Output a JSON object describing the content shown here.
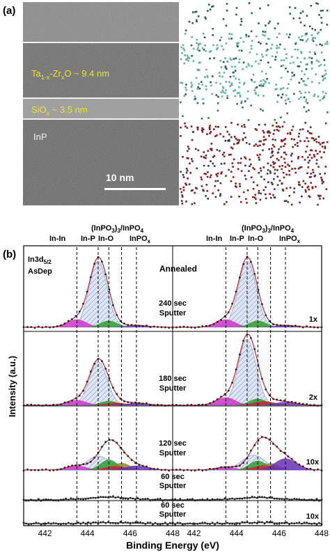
{
  "panel_a": {
    "label": "(a)",
    "tem": {
      "layer1_label": "Ta",
      "layer1_sub1": "1-x",
      "layer1_mid": "-Zr",
      "layer1_sub2": "x",
      "layer1_rest": "O ~ 9.4 nm",
      "layer2_label": "SiO",
      "layer2_sub": "x",
      "layer2_rest": " ~ 3.5 nm",
      "substrate_label": "InP",
      "scale_bar_label": "10  nm"
    },
    "colors": {
      "tem_background": "#7d7d7d",
      "oxide_layer": "#5aa58d",
      "inp_layer": "#8b1a1a",
      "annotation_yellow": "#e8e82a"
    }
  },
  "panel_b": {
    "label": "(b)",
    "core_level": "In3d",
    "core_level_sub": "5/2",
    "left_condition": "AsDep",
    "right_condition": "Annealed",
    "peak_labels_left": {
      "in_in": "In-In",
      "in_p": "In-P",
      "in_o": "In-O",
      "inpo3": "(InPO",
      "inpo3_sub": "3",
      "inpo3_tail": ")",
      "inpo3_sub2": "3",
      "inpo4": "/InPO",
      "inpo4_sub": "4",
      "inpox": "InPO",
      "inpox_sub": "x"
    },
    "stack_labels": [
      {
        "line1": "240 sec",
        "line2": "Sputter",
        "multiplier": "1x"
      },
      {
        "line1": "180 sec",
        "line2": "Sputter",
        "multiplier": "2x"
      },
      {
        "line1": "120 sec",
        "line2": "Sputter",
        "multiplier": "10x"
      },
      {
        "line1": "60 sec",
        "line2": "Sputter",
        "multiplier": ""
      },
      {
        "line1": "60 sec",
        "line2": "Sputter",
        "multiplier": "10x"
      }
    ],
    "ylabel": "Intensity (a.u.)",
    "xlabel": "Binding Energy (eV)",
    "x_ticks": [
      "442",
      "444",
      "446",
      "448",
      "442",
      "444",
      "446",
      "448"
    ],
    "colors": {
      "magenta": "#cc33cc",
      "green": "#2e9e2e",
      "red": "#cc2233",
      "purple": "#6a2fb8",
      "olive": "#8a8a2a",
      "main_peak": "#8fa8d8",
      "fit_line": "#c0202a",
      "data_points": "#222222"
    }
  },
  "chart_data": {
    "type": "line",
    "xlabel": "Binding Energy (eV)",
    "ylabel": "Intensity (a.u.)",
    "xlim": [
      441,
      448
    ],
    "x_ticks": [
      442,
      444,
      446,
      448
    ],
    "reference_lines_eV": [
      443.5,
      444.5,
      445.0,
      445.6,
      446.3
    ],
    "panels": [
      {
        "condition": "AsDep",
        "spectra": [
          {
            "name": "240 sec Sputter",
            "scale": "1x",
            "peak_center": 444.5,
            "peak_height": 1.0
          },
          {
            "name": "180 sec Sputter",
            "scale": "",
            "peak_center": 444.5,
            "peak_height": 0.62
          },
          {
            "name": "120 sec Sputter",
            "scale": "",
            "peak_center": 444.9,
            "peak_height": 0.52
          },
          {
            "name": "60 sec Sputter",
            "scale": "",
            "peak_center": 445.0,
            "peak_height": 0.06
          },
          {
            "name": "60 sec Sputter",
            "scale": "",
            "peak_center": 445.0,
            "peak_height": 0.02
          }
        ]
      },
      {
        "condition": "Annealed",
        "spectra": [
          {
            "name": "240 sec Sputter",
            "scale": "1x",
            "peak_center": 444.5,
            "peak_height": 1.0
          },
          {
            "name": "180 sec Sputter",
            "scale": "2x",
            "peak_center": 444.5,
            "peak_height": 0.95
          },
          {
            "name": "120 sec Sputter",
            "scale": "10x",
            "peak_center": 445.2,
            "peak_height": 0.55
          },
          {
            "name": "60 sec Sputter",
            "scale": "",
            "peak_center": 445.0,
            "peak_height": 0.05
          },
          {
            "name": "60 sec Sputter",
            "scale": "10x",
            "peak_center": 445.0,
            "peak_height": 0.02
          }
        ]
      }
    ]
  }
}
